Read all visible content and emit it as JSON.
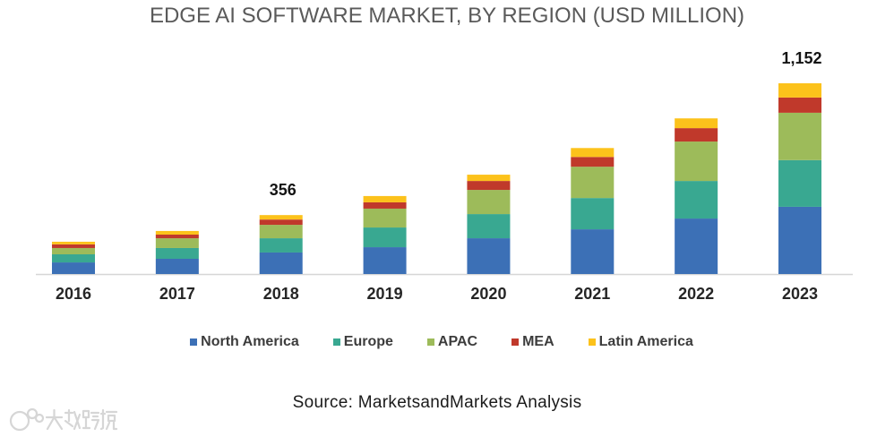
{
  "chart_data": {
    "type": "bar",
    "stacked": true,
    "title": "EDGE AI SOFTWARE MARKET, BY REGION (USD MILLION)",
    "categories": [
      "2016",
      "2017",
      "2018",
      "2019",
      "2020",
      "2021",
      "2022",
      "2023"
    ],
    "series": [
      {
        "name": "North America",
        "color": "#3c70b6",
        "values": [
          70,
          92,
          130,
          162,
          216,
          270,
          335,
          406
        ]
      },
      {
        "name": "Europe",
        "color": "#39a891",
        "values": [
          49,
          65,
          86,
          119,
          146,
          189,
          227,
          282
        ]
      },
      {
        "name": "APAC",
        "color": "#9dbb5a",
        "values": [
          38,
          59,
          81,
          114,
          146,
          189,
          238,
          286
        ]
      },
      {
        "name": "MEA",
        "color": "#c0392b",
        "values": [
          22,
          22,
          32,
          38,
          54,
          59,
          81,
          92
        ]
      },
      {
        "name": "Latin America",
        "color": "#fcc21b",
        "values": [
          16,
          22,
          27,
          38,
          38,
          54,
          59,
          86
        ]
      }
    ],
    "data_labels": [
      {
        "category": "2018",
        "text": "356"
      },
      {
        "category": "2023",
        "text": "1,152"
      }
    ]
  },
  "source": "Source: MarketsandMarkets Analysis",
  "watermark": {
    "text": "大数跨境"
  }
}
